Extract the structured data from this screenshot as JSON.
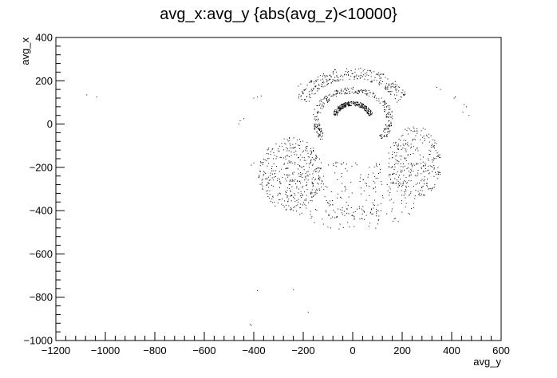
{
  "chart_data": {
    "type": "scatter",
    "title": "avg_x:avg_y {abs(avg_z)<10000}",
    "xlabel": "avg_y",
    "ylabel": "avg_x",
    "xlim": [
      -1200,
      600
    ],
    "ylim": [
      -1000,
      400
    ],
    "x_ticks": [
      -1200,
      -1000,
      -800,
      -600,
      -400,
      -200,
      0,
      200,
      400,
      600
    ],
    "y_ticks": [
      -1000,
      -800,
      -600,
      -400,
      -200,
      0,
      200,
      400
    ],
    "x_tick_labels": [
      "−1200",
      "−1000",
      "−800",
      "−600",
      "−400",
      "−200",
      "0",
      "200",
      "400",
      "600"
    ],
    "y_tick_labels": [
      "−1000",
      "−800",
      "−600",
      "−400",
      "−200",
      "0",
      "200",
      "400"
    ],
    "grid": false,
    "marker_color": "#000000",
    "points": [
      [
        -1075,
        135
      ],
      [
        -1035,
        125
      ],
      [
        -460,
        0
      ],
      [
        -455,
        15
      ],
      [
        -440,
        25
      ],
      [
        -400,
        120
      ],
      [
        -385,
        125
      ],
      [
        -370,
        130
      ],
      [
        -400,
        -180
      ],
      [
        -410,
        -190
      ],
      [
        -385,
        -770
      ],
      [
        -240,
        -765
      ],
      [
        -180,
        -870
      ],
      [
        -415,
        -925
      ],
      [
        -410,
        -930
      ],
      [
        410,
        120
      ],
      [
        415,
        125
      ],
      [
        450,
        90
      ],
      [
        460,
        80
      ],
      [
        445,
        55
      ],
      [
        470,
        40
      ],
      [
        340,
        170
      ],
      [
        355,
        160
      ],
      [
        -220,
        175
      ],
      [
        -210,
        185
      ],
      [
        310,
        -140
      ],
      [
        330,
        -160
      ]
    ],
    "point_groups": [
      {
        "cx": 0,
        "cy": 20,
        "rx": 75,
        "ry": 75,
        "a0": 15,
        "a1": 165,
        "dr": 20,
        "n": 280
      },
      {
        "cx": 0,
        "cy": 20,
        "rx": 150,
        "ry": 135,
        "a0": -40,
        "a1": 220,
        "dr": 30,
        "n": 300
      },
      {
        "cx": 0,
        "cy": 20,
        "rx": 225,
        "ry": 215,
        "a0": 25,
        "a1": 155,
        "dr": 55,
        "n": 260
      },
      {
        "cx": -250,
        "cy": -230,
        "rx": 130,
        "ry": 170,
        "a0": 0,
        "a1": 360,
        "dr": 0.5,
        "n": 380
      },
      {
        "cx": 250,
        "cy": -180,
        "rx": 110,
        "ry": 170,
        "a0": 0,
        "a1": 360,
        "dr": 0.5,
        "n": 300
      },
      {
        "cx": 0,
        "cy": -330,
        "rx": 280,
        "ry": 160,
        "a0": 0,
        "a1": 360,
        "dr": 0.5,
        "n": 220
      },
      {
        "cx": 0,
        "cy": -80,
        "rx": 345,
        "ry": 330,
        "a0": 250,
        "a1": 290,
        "dr": 60,
        "n": 50
      }
    ]
  }
}
